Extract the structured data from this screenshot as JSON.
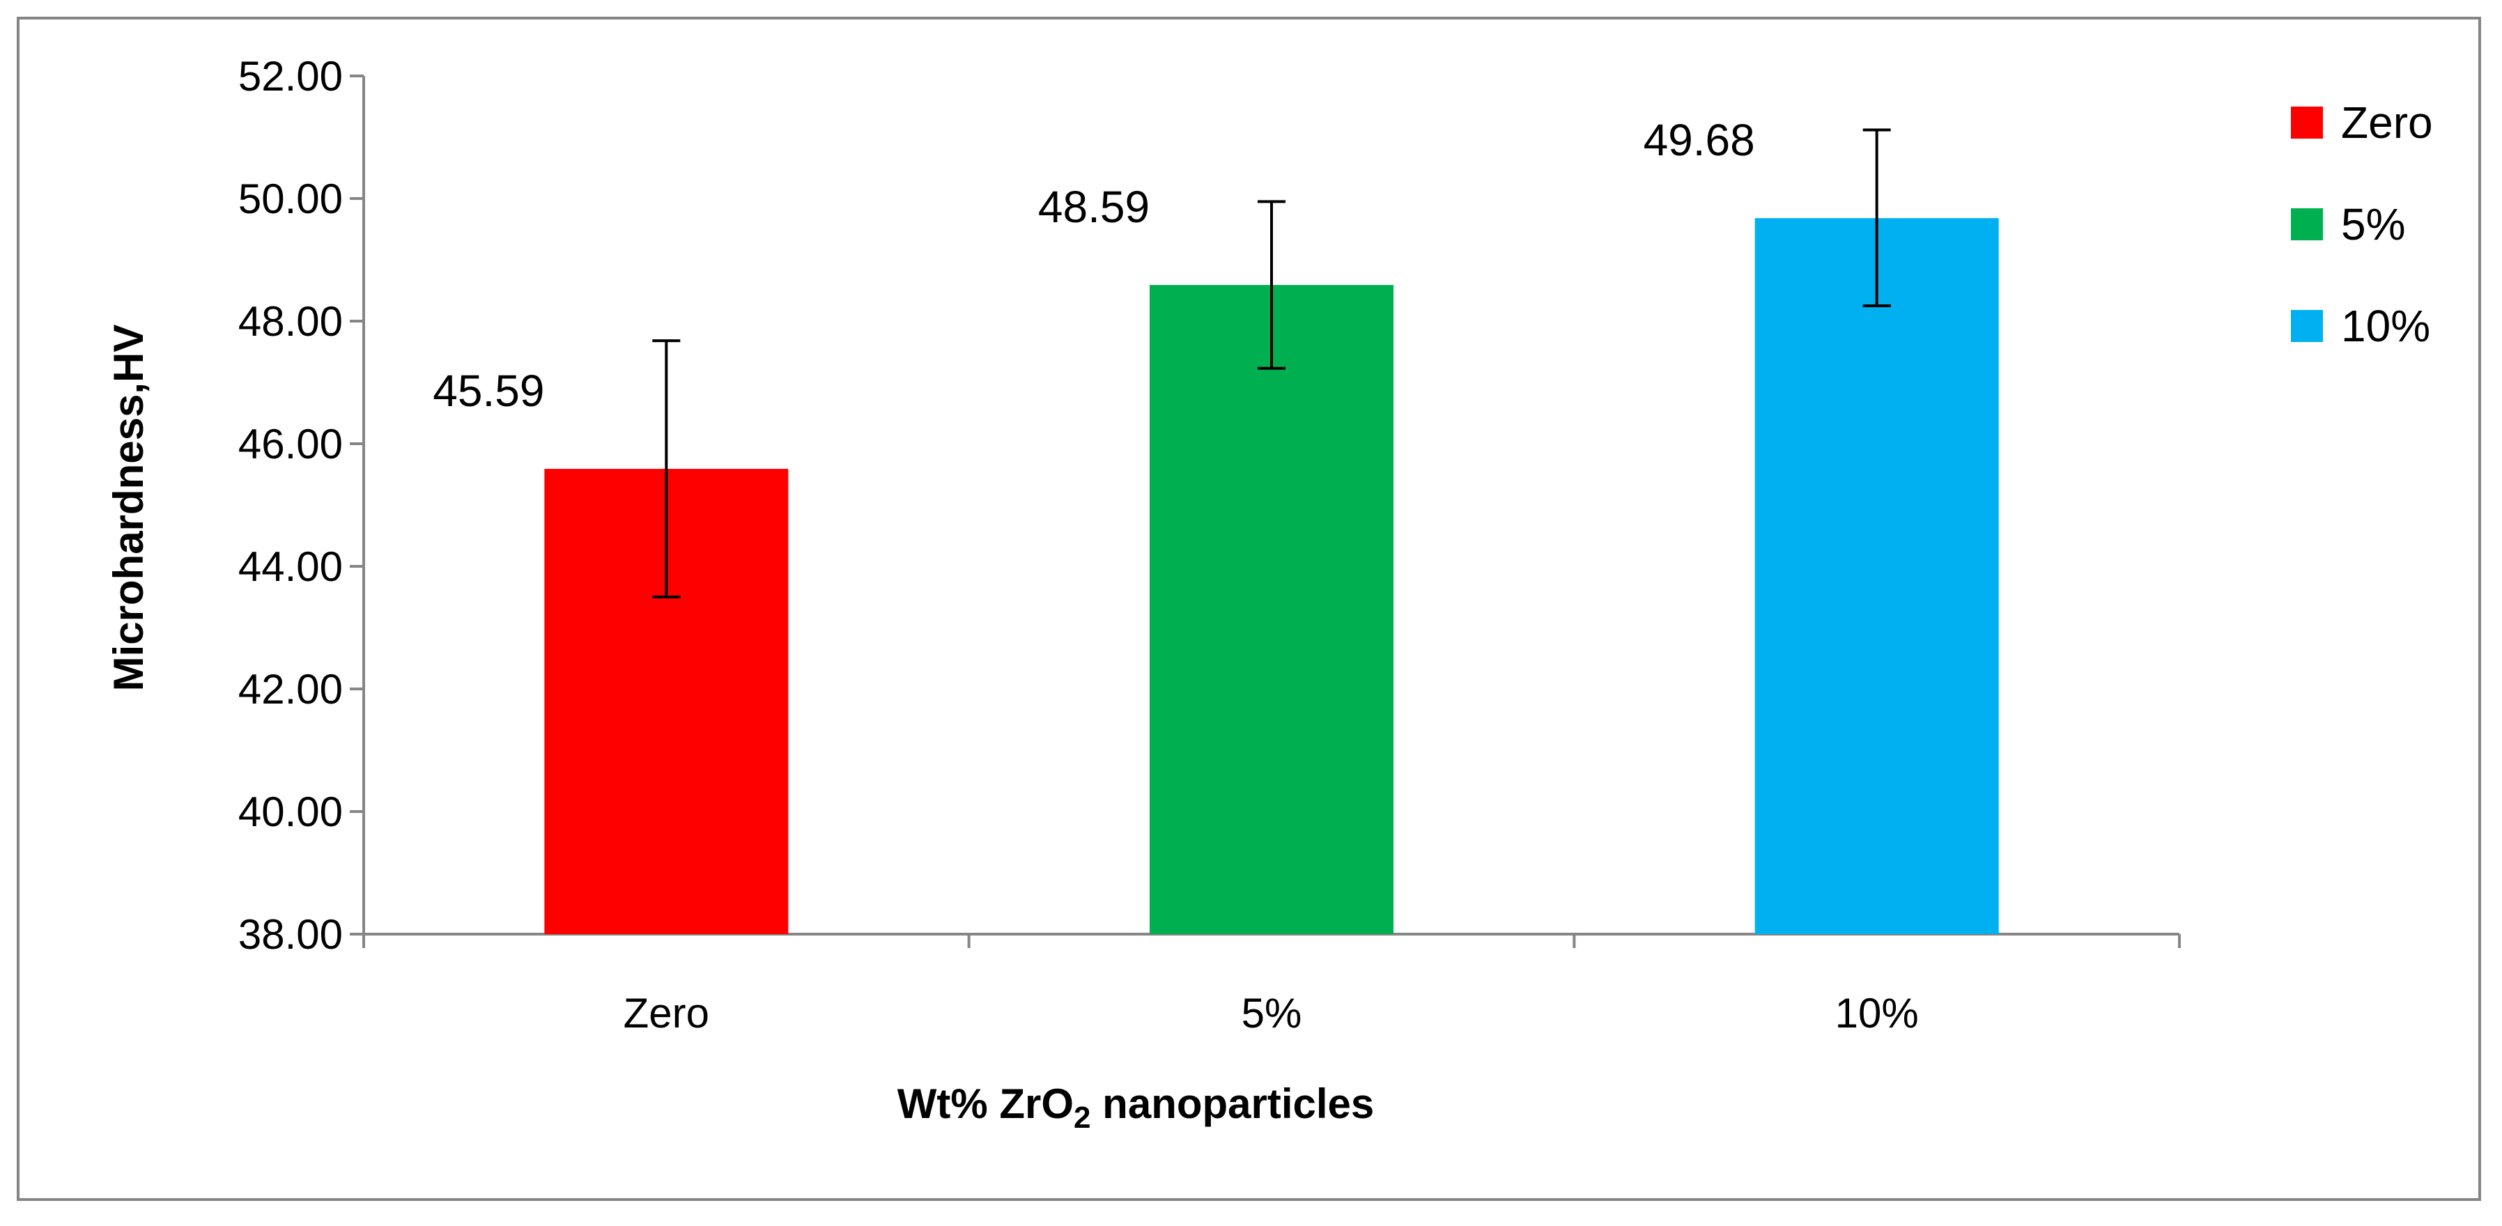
{
  "chart_data": {
    "type": "bar",
    "categories": [
      "Zero",
      "5%",
      "10%"
    ],
    "values": [
      45.59,
      48.59,
      49.68
    ],
    "data_labels": [
      "45.59",
      "48.59",
      "49.68"
    ],
    "error_bars": [
      {
        "low": 43.5,
        "high": 47.68
      },
      {
        "low": 47.23,
        "high": 49.95
      },
      {
        "low": 48.25,
        "high": 51.12
      }
    ],
    "colors": [
      "#ff0000",
      "#00b050",
      "#00b0f0"
    ],
    "xlabel": {
      "main": "Wt% ZrO",
      "sub": "2",
      "rest": " nanoparticles"
    },
    "ylabel": "Microhardness,HV",
    "ylim": [
      38,
      52
    ],
    "yticks": [
      "38.00",
      "40.00",
      "42.00",
      "44.00",
      "46.00",
      "48.00",
      "50.00",
      "52.00"
    ],
    "legend": [
      "Zero",
      "5%",
      "10%"
    ],
    "legend_position": "right",
    "grid": false
  }
}
